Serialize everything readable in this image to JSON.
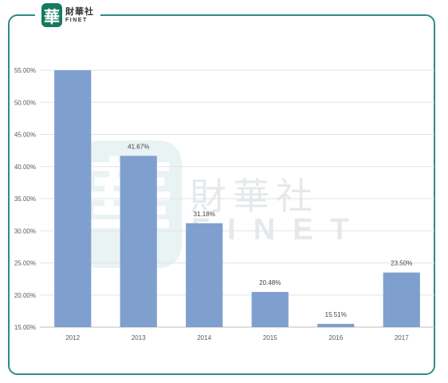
{
  "brand": {
    "logo_glyph": "華",
    "name_cn": "財華社",
    "name_en": "FINET",
    "accent_color": "#157b5e",
    "frame_color": "#2f8a86"
  },
  "watermark": {
    "seal_glyph": "華",
    "name_cn": "財華社",
    "name_en": "FINET"
  },
  "chart_data": {
    "type": "bar",
    "categories": [
      "2012",
      "2013",
      "2014",
      "2015",
      "2016",
      "2017"
    ],
    "values": [
      55.0,
      41.67,
      31.18,
      20.48,
      15.51,
      23.5
    ],
    "data_labels": [
      "",
      "41.67%",
      "31.18%",
      "20.48%",
      "15.51%",
      "23.50%"
    ],
    "title": "",
    "xlabel": "",
    "ylabel": "",
    "ylim": [
      15,
      55
    ],
    "yticks": [
      15,
      20,
      25,
      30,
      35,
      40,
      45,
      50,
      55
    ],
    "ytick_labels": [
      "15.00%",
      "20.00%",
      "25.00%",
      "30.00%",
      "35.00%",
      "40.00%",
      "45.00%",
      "50.00%",
      "55.00%"
    ],
    "bar_color": "#7f9fcf",
    "grid": true,
    "legend": "none"
  }
}
